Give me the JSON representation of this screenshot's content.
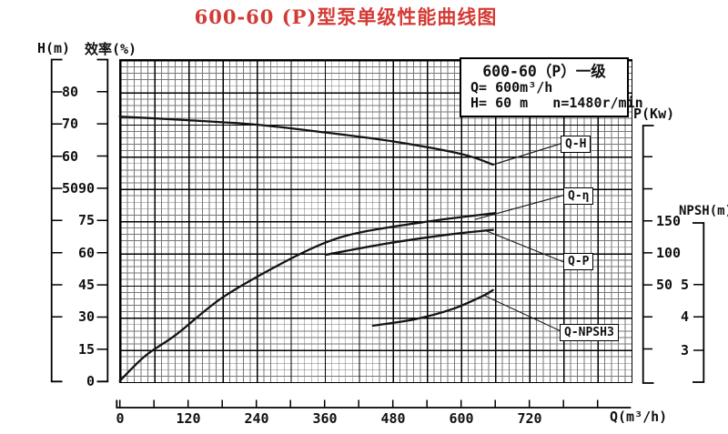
{
  "title": "600-60 (P)型泵单级性能曲线图",
  "colors": {
    "title_red": "#d43a34",
    "curve_black": "#141414"
  },
  "info_box": {
    "line1": "600-60（P）一级",
    "line2": "Q= 600m³/h",
    "line3": "H= 60 m   n=1480r/min"
  },
  "curve_labels": {
    "qh": "Q-H",
    "qeta": "Q-η",
    "qp": "Q-P",
    "qnpsh": "Q-NPSH3"
  },
  "axes": {
    "h": {
      "label": "H(m)",
      "tick_labels": [
        "80",
        "70",
        "60",
        "50"
      ]
    },
    "eff": {
      "label": "效率(%)",
      "tick_labels": [
        "90",
        "75",
        "60",
        "45",
        "30",
        "15",
        "0"
      ]
    },
    "p": {
      "label": "P(Kw)",
      "tick_labels": [
        "150",
        "100",
        "50"
      ]
    },
    "npsh": {
      "label": "NPSH(m)",
      "tick_labels": [
        "5",
        "4",
        "3"
      ]
    },
    "q": {
      "label": "Q(m³/h)",
      "tick_labels": [
        "0",
        "120",
        "240",
        "360",
        "480",
        "600",
        "720"
      ]
    }
  },
  "chart_data": {
    "type": "line",
    "title": "600-60 (P)型泵单级性能曲线图",
    "xlabel": "Q(m³/h)",
    "x_minor_tick_step": 60,
    "x_label_step": 120,
    "x_axis_tick_range": [
      0,
      840
    ],
    "grid": "fine square minor grid with heavy major lines every 60 m³/h",
    "legend_position": "boxed labels with leader lines at right side of plot",
    "series": [
      {
        "name": "Q-H",
        "axis": "H(m)",
        "axis_side": "left",
        "axis_labeled_ticks": [
          80,
          70,
          60,
          50
        ],
        "points": [
          [
            0,
            72.3
          ],
          [
            120,
            71.2
          ],
          [
            240,
            69.8
          ],
          [
            360,
            67.4
          ],
          [
            480,
            64.6
          ],
          [
            600,
            60.7
          ],
          [
            656,
            57.4
          ]
        ]
      },
      {
        "name": "Q-η",
        "axis": "效率(%)",
        "axis_side": "left",
        "axis_labeled_ticks": [
          90,
          75,
          60,
          45,
          30,
          15,
          0
        ],
        "points": [
          [
            0,
            0.3
          ],
          [
            45,
            12
          ],
          [
            100,
            22
          ],
          [
            180,
            39
          ],
          [
            285,
            55
          ],
          [
            365,
            65
          ],
          [
            435,
            70
          ],
          [
            557,
            75
          ],
          [
            659,
            78.3
          ]
        ]
      },
      {
        "name": "Q-P",
        "axis": "P(Kw)",
        "axis_side": "right",
        "axis_labeled_ticks": [
          150,
          100,
          50
        ],
        "points": [
          [
            362,
            97
          ],
          [
            466,
            114
          ],
          [
            573,
            128
          ],
          [
            656,
            136
          ]
        ]
      },
      {
        "name": "Q-NPSH3",
        "axis": "NPSH(m)",
        "axis_side": "right",
        "axis_labeled_ticks": [
          5,
          4,
          3
        ],
        "points": [
          [
            445,
            3.75
          ],
          [
            520,
            3.95
          ],
          [
            584,
            4.25
          ],
          [
            637,
            4.64
          ],
          [
            656,
            4.83
          ]
        ]
      }
    ],
    "rated_point": {
      "Q": "600m³/h",
      "H": "60 m",
      "n": "1480r/min"
    }
  }
}
